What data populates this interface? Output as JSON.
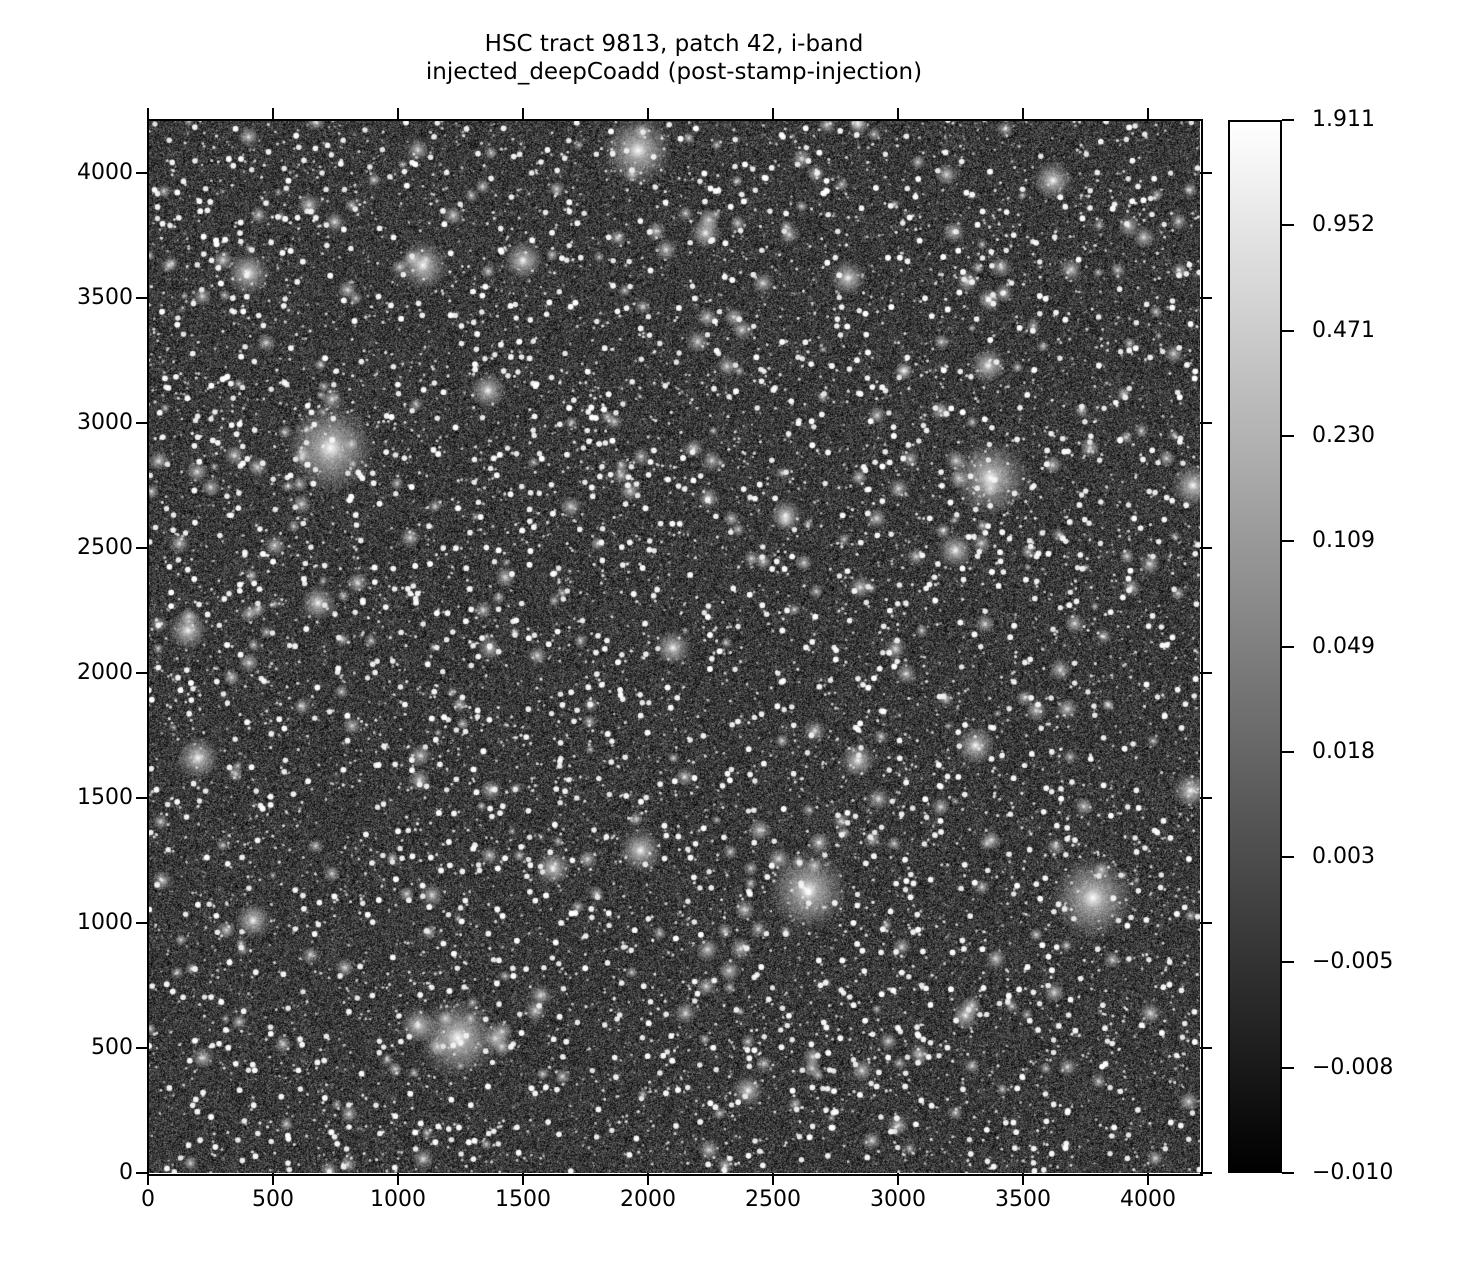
{
  "chart_data": {
    "type": "heatmap",
    "title": [
      "HSC tract 9813, patch 42, i-band",
      "injected_deepCoadd (post-stamp-injection)"
    ],
    "xlabel": "",
    "ylabel": "",
    "xlim": [
      0,
      4200
    ],
    "ylim": [
      0,
      4200
    ],
    "x_ticks": [
      0,
      500,
      1000,
      1500,
      2000,
      2500,
      3000,
      3500,
      4000
    ],
    "y_ticks": [
      0,
      500,
      1000,
      1500,
      2000,
      2500,
      3000,
      3500,
      4000
    ],
    "colormap": "gray",
    "colorbar": {
      "ticks": [
        "1.911",
        "0.952",
        "0.471",
        "0.230",
        "0.109",
        "0.049",
        "0.018",
        "0.003",
        "−0.005",
        "−0.008",
        "−0.010"
      ],
      "range": [
        -0.01,
        1.911
      ]
    },
    "grid": false
  }
}
